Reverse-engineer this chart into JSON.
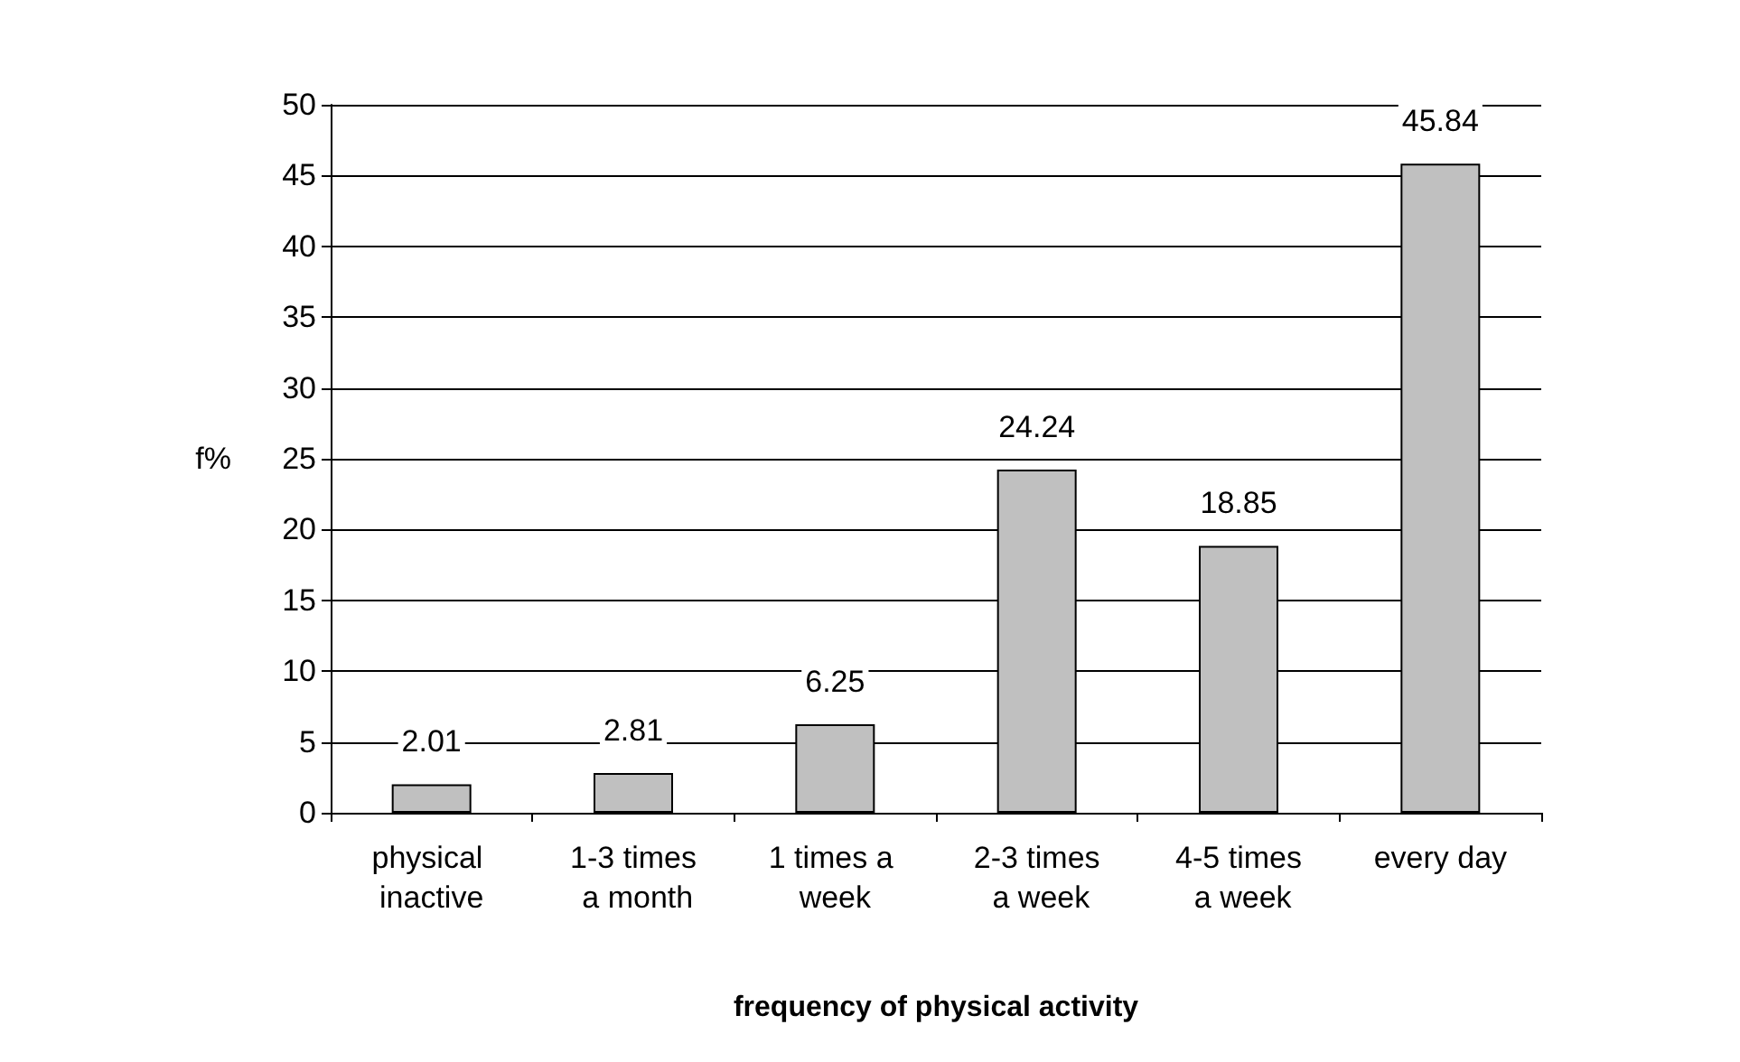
{
  "chart_data": {
    "type": "bar",
    "xlabel": "frequency of physical activity",
    "ylabel": "f%",
    "categories": [
      "physical inactive",
      "1-3 times a month",
      "1 times a week",
      "2-3 times a week",
      "4-5 times a week",
      "every day"
    ],
    "values": [
      2.01,
      2.81,
      6.25,
      24.24,
      18.85,
      45.84
    ],
    "color": "#c0c0c0",
    "ylim": [
      0,
      50
    ],
    "yticks": [
      0,
      5,
      10,
      15,
      20,
      25,
      30,
      35,
      40,
      45,
      50
    ],
    "grid": "y",
    "data_labels": true
  }
}
